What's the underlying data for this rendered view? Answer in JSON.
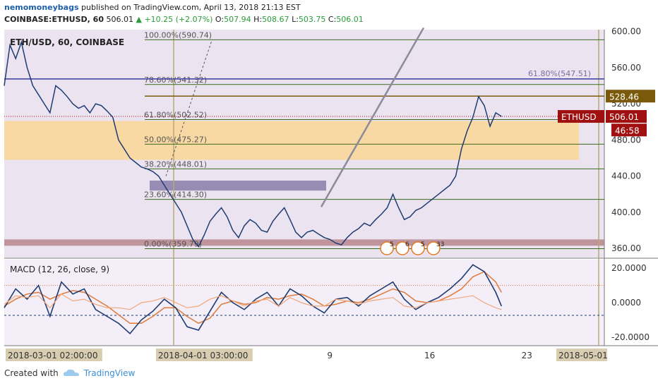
{
  "header": {
    "user": "nemomoneybags",
    "published_text": "published on TradingView.com, April 13, 2018 21:13 EST",
    "symbol": "COINBASE:ETHUSD, 60",
    "last": "506.01",
    "change": "+10.25 (+2.07%)",
    "o_label": "O:",
    "o_value": "507.94",
    "h_label": "H:",
    "h_value": "508.67",
    "l_label": "L:",
    "l_value": "503.75",
    "c_label": "C:",
    "c_value": "506.01"
  },
  "footer": {
    "created_with": "Created with",
    "brand": "TradingView"
  },
  "chart_data": {
    "type": "line",
    "title": "ETH/USD, 60, COINBASE",
    "colors": {
      "price": "#1f3c72",
      "upper_bg": "#ebe4f0",
      "lower_bg": "#f3eef7",
      "zone": "#fbd79a",
      "fib": "#3b6a1e",
      "cur_price_tag": "#a01010",
      "target_tag": "#7a5a0a"
    },
    "price_axis": {
      "ylim": [
        350,
        602
      ],
      "ticks": [
        "600.00",
        "560.00",
        "520.00",
        "480.00",
        "440.00",
        "400.00",
        "360.00"
      ],
      "tick_values": [
        600,
        560,
        520,
        480,
        440,
        400,
        360
      ]
    },
    "x_axis": {
      "ticks": [
        "2018-03-01 02:00:00",
        "2018-04-01 03:00:00",
        "9",
        "16",
        "23",
        "2018-05-01"
      ],
      "tick_values": [
        0,
        0.35,
        0.57,
        0.74,
        0.91,
        1.04
      ]
    },
    "fib_levels": [
      {
        "label": "100.00%(590.74)",
        "value": 590.74
      },
      {
        "label": "78.60%(541.32)",
        "value": 541.32
      },
      {
        "label": "61.80%(502.52)",
        "value": 502.52
      },
      {
        "label": "50.00%(475.27)",
        "value": 475.27
      },
      {
        "label": "38.20%(448.01)",
        "value": 448.01
      },
      {
        "label": "23.60%(414.30)",
        "value": 414.3
      },
      {
        "label": "0.00%(359.79)",
        "value": 359.79
      }
    ],
    "fib_extra": {
      "label": "61.80%(547.51)",
      "value": 547.51
    },
    "zones": [
      {
        "name": "resistance-zone",
        "low": 458,
        "high": 501
      },
      {
        "name": "support-zone",
        "low": 424,
        "high": 435
      },
      {
        "name": "base-zone",
        "low": 363,
        "high": 370
      }
    ],
    "price_tags": [
      {
        "name": "target",
        "label": "528.46",
        "value": 528.46
      },
      {
        "name": "symbol",
        "label": "ETHUSD",
        "value": 506.01
      },
      {
        "name": "current",
        "label": "506.01",
        "value": 506.01
      },
      {
        "name": "countdown",
        "label": "46:58",
        "value": 491
      }
    ],
    "price_series": [
      [
        0.0,
        540
      ],
      [
        0.01,
        585
      ],
      [
        0.02,
        570
      ],
      [
        0.03,
        588
      ],
      [
        0.04,
        560
      ],
      [
        0.05,
        540
      ],
      [
        0.06,
        530
      ],
      [
        0.07,
        520
      ],
      [
        0.08,
        510
      ],
      [
        0.09,
        540
      ],
      [
        0.1,
        535
      ],
      [
        0.11,
        528
      ],
      [
        0.12,
        520
      ],
      [
        0.13,
        515
      ],
      [
        0.14,
        518
      ],
      [
        0.15,
        510
      ],
      [
        0.16,
        520
      ],
      [
        0.17,
        518
      ],
      [
        0.18,
        512
      ],
      [
        0.19,
        505
      ],
      [
        0.2,
        480
      ],
      [
        0.21,
        470
      ],
      [
        0.22,
        460
      ],
      [
        0.23,
        455
      ],
      [
        0.24,
        450
      ],
      [
        0.25,
        448
      ],
      [
        0.26,
        445
      ],
      [
        0.27,
        440
      ],
      [
        0.28,
        430
      ],
      [
        0.29,
        420
      ],
      [
        0.3,
        410
      ],
      [
        0.31,
        400
      ],
      [
        0.32,
        385
      ],
      [
        0.33,
        370
      ],
      [
        0.34,
        362
      ],
      [
        0.35,
        375
      ],
      [
        0.36,
        390
      ],
      [
        0.37,
        398
      ],
      [
        0.38,
        405
      ],
      [
        0.39,
        395
      ],
      [
        0.4,
        380
      ],
      [
        0.41,
        372
      ],
      [
        0.42,
        385
      ],
      [
        0.43,
        392
      ],
      [
        0.44,
        388
      ],
      [
        0.45,
        380
      ],
      [
        0.46,
        378
      ],
      [
        0.47,
        390
      ],
      [
        0.48,
        398
      ],
      [
        0.49,
        405
      ],
      [
        0.5,
        392
      ],
      [
        0.51,
        378
      ],
      [
        0.52,
        372
      ],
      [
        0.53,
        378
      ],
      [
        0.54,
        380
      ],
      [
        0.55,
        376
      ],
      [
        0.56,
        372
      ],
      [
        0.57,
        370
      ],
      [
        0.58,
        366
      ],
      [
        0.59,
        364
      ],
      [
        0.6,
        372
      ],
      [
        0.61,
        378
      ],
      [
        0.62,
        382
      ],
      [
        0.63,
        388
      ],
      [
        0.64,
        385
      ],
      [
        0.65,
        392
      ],
      [
        0.66,
        398
      ],
      [
        0.67,
        405
      ],
      [
        0.68,
        420
      ],
      [
        0.69,
        405
      ],
      [
        0.7,
        392
      ],
      [
        0.71,
        395
      ],
      [
        0.72,
        402
      ],
      [
        0.73,
        405
      ],
      [
        0.74,
        410
      ],
      [
        0.75,
        415
      ],
      [
        0.76,
        420
      ],
      [
        0.77,
        425
      ],
      [
        0.78,
        430
      ],
      [
        0.79,
        440
      ],
      [
        0.8,
        470
      ],
      [
        0.81,
        490
      ],
      [
        0.82,
        505
      ],
      [
        0.83,
        528
      ],
      [
        0.84,
        518
      ],
      [
        0.85,
        495
      ],
      [
        0.86,
        510
      ],
      [
        0.87,
        506
      ]
    ],
    "macd": {
      "label": "MACD (12, 26, close, 9)",
      "ylim": [
        -25,
        25
      ],
      "ticks": [
        "20.0000",
        "0.0000",
        "-20.0000"
      ],
      "tick_values": [
        20,
        0,
        -20
      ],
      "macd_line": [
        [
          0.0,
          -3
        ],
        [
          0.02,
          8
        ],
        [
          0.04,
          2
        ],
        [
          0.06,
          10
        ],
        [
          0.08,
          -8
        ],
        [
          0.1,
          12
        ],
        [
          0.12,
          5
        ],
        [
          0.14,
          8
        ],
        [
          0.16,
          -4
        ],
        [
          0.18,
          -8
        ],
        [
          0.2,
          -12
        ],
        [
          0.22,
          -18
        ],
        [
          0.24,
          -10
        ],
        [
          0.26,
          -5
        ],
        [
          0.28,
          2
        ],
        [
          0.3,
          -3
        ],
        [
          0.32,
          -14
        ],
        [
          0.34,
          -16
        ],
        [
          0.36,
          -5
        ],
        [
          0.38,
          6
        ],
        [
          0.4,
          0
        ],
        [
          0.42,
          -4
        ],
        [
          0.44,
          2
        ],
        [
          0.46,
          6
        ],
        [
          0.48,
          -2
        ],
        [
          0.5,
          8
        ],
        [
          0.52,
          4
        ],
        [
          0.54,
          -2
        ],
        [
          0.56,
          -6
        ],
        [
          0.58,
          2
        ],
        [
          0.6,
          3
        ],
        [
          0.62,
          -2
        ],
        [
          0.64,
          4
        ],
        [
          0.66,
          8
        ],
        [
          0.68,
          12
        ],
        [
          0.7,
          2
        ],
        [
          0.72,
          -4
        ],
        [
          0.74,
          0
        ],
        [
          0.76,
          3
        ],
        [
          0.78,
          8
        ],
        [
          0.8,
          14
        ],
        [
          0.82,
          22
        ],
        [
          0.84,
          18
        ],
        [
          0.86,
          6
        ],
        [
          0.87,
          -2
        ]
      ],
      "signal_line": [
        [
          0.0,
          -2
        ],
        [
          0.02,
          2
        ],
        [
          0.04,
          5
        ],
        [
          0.06,
          6
        ],
        [
          0.08,
          2
        ],
        [
          0.1,
          5
        ],
        [
          0.12,
          7
        ],
        [
          0.14,
          6
        ],
        [
          0.16,
          2
        ],
        [
          0.18,
          -2
        ],
        [
          0.2,
          -7
        ],
        [
          0.22,
          -12
        ],
        [
          0.24,
          -12
        ],
        [
          0.26,
          -8
        ],
        [
          0.28,
          -3
        ],
        [
          0.3,
          -3
        ],
        [
          0.32,
          -8
        ],
        [
          0.34,
          -12
        ],
        [
          0.36,
          -9
        ],
        [
          0.38,
          -1
        ],
        [
          0.4,
          1
        ],
        [
          0.42,
          -1
        ],
        [
          0.44,
          0
        ],
        [
          0.46,
          3
        ],
        [
          0.48,
          2
        ],
        [
          0.5,
          4
        ],
        [
          0.52,
          5
        ],
        [
          0.54,
          2
        ],
        [
          0.56,
          -2
        ],
        [
          0.58,
          -1
        ],
        [
          0.6,
          1
        ],
        [
          0.62,
          0
        ],
        [
          0.64,
          2
        ],
        [
          0.66,
          5
        ],
        [
          0.68,
          8
        ],
        [
          0.7,
          6
        ],
        [
          0.72,
          1
        ],
        [
          0.74,
          0
        ],
        [
          0.76,
          1
        ],
        [
          0.78,
          4
        ],
        [
          0.8,
          8
        ],
        [
          0.82,
          15
        ],
        [
          0.84,
          18
        ],
        [
          0.86,
          12
        ],
        [
          0.87,
          6
        ]
      ],
      "histogram_line": [
        [
          0.0,
          -1
        ],
        [
          0.02,
          4
        ],
        [
          0.04,
          3
        ],
        [
          0.06,
          4
        ],
        [
          0.08,
          -3
        ],
        [
          0.1,
          5
        ],
        [
          0.12,
          1
        ],
        [
          0.14,
          2
        ],
        [
          0.16,
          -1
        ],
        [
          0.18,
          -3
        ],
        [
          0.2,
          -3
        ],
        [
          0.22,
          -4
        ],
        [
          0.24,
          0
        ],
        [
          0.26,
          1
        ],
        [
          0.28,
          3
        ],
        [
          0.3,
          0
        ],
        [
          0.32,
          -3
        ],
        [
          0.34,
          -2
        ],
        [
          0.36,
          2
        ],
        [
          0.38,
          4
        ],
        [
          0.4,
          1
        ],
        [
          0.42,
          -2
        ],
        [
          0.44,
          1
        ],
        [
          0.46,
          2
        ],
        [
          0.48,
          -2
        ],
        [
          0.5,
          3
        ],
        [
          0.52,
          0
        ],
        [
          0.54,
          -2
        ],
        [
          0.56,
          -2
        ],
        [
          0.58,
          2
        ],
        [
          0.6,
          1
        ],
        [
          0.62,
          -1
        ],
        [
          0.64,
          1
        ],
        [
          0.66,
          2
        ],
        [
          0.68,
          3
        ],
        [
          0.7,
          -2
        ],
        [
          0.72,
          -3
        ],
        [
          0.74,
          0
        ],
        [
          0.76,
          1
        ],
        [
          0.78,
          2
        ],
        [
          0.8,
          3
        ],
        [
          0.82,
          4
        ],
        [
          0.84,
          0
        ],
        [
          0.86,
          -3
        ],
        [
          0.87,
          -4
        ]
      ]
    },
    "event_badges": [
      "5",
      "6",
      "5",
      "33"
    ]
  }
}
